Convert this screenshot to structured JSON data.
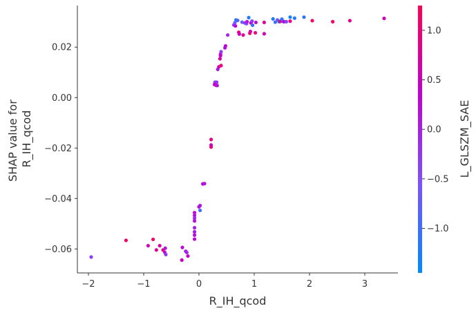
{
  "chart_data": {
    "type": "scatter",
    "title": "",
    "xlabel": "R_IH_qcod",
    "ylabel_lines": [
      "SHAP value for",
      "R_IH_qcod"
    ],
    "xlim": [
      -2.2,
      3.6
    ],
    "ylim": [
      -0.0695,
      0.0365
    ],
    "xticks": [
      -2,
      -1,
      0,
      1,
      2,
      3
    ],
    "yticks": [
      -0.06,
      -0.04,
      -0.02,
      0.0,
      0.02
    ],
    "xtick_labels": [
      "−2",
      "−1",
      "0",
      "1",
      "2",
      "3"
    ],
    "ytick_labels": [
      "−0.06",
      "−0.04",
      "−0.02",
      "0.00",
      "0.02"
    ],
    "grid": false,
    "colorbar": {
      "label": "L_GLSZM_SAE",
      "range": [
        -1.45,
        1.25
      ],
      "ticks": [
        -1.0,
        -0.5,
        0.0,
        0.5,
        1.0
      ],
      "tick_labels": [
        "−1.0",
        "−0.5",
        "0.0",
        "0.5",
        "1.0"
      ],
      "colors": [
        "#008afb",
        "#7c52ff",
        "#c100d2",
        "#ff0052"
      ]
    },
    "points": [
      {
        "x": -1.95,
        "y": -0.0632,
        "c": -0.3
      },
      {
        "x": -1.32,
        "y": -0.0566,
        "c": 1.1
      },
      {
        "x": -0.92,
        "y": -0.0587,
        "c": 0.6
      },
      {
        "x": -0.83,
        "y": -0.0562,
        "c": 1.1
      },
      {
        "x": -0.77,
        "y": -0.0604,
        "c": 0.8
      },
      {
        "x": -0.71,
        "y": -0.0587,
        "c": 0.6
      },
      {
        "x": -0.65,
        "y": -0.0604,
        "c": 0.9
      },
      {
        "x": -0.62,
        "y": -0.0613,
        "c": 0.2
      },
      {
        "x": -0.6,
        "y": -0.0622,
        "c": -0.2
      },
      {
        "x": -0.61,
        "y": -0.0597,
        "c": 0.1
      },
      {
        "x": -0.31,
        "y": -0.0644,
        "c": 0.4
      },
      {
        "x": -0.3,
        "y": -0.0594,
        "c": 0.3
      },
      {
        "x": -0.24,
        "y": -0.0609,
        "c": 0.0
      },
      {
        "x": -0.22,
        "y": -0.0614,
        "c": -0.1
      },
      {
        "x": -0.2,
        "y": -0.0628,
        "c": 0.4
      },
      {
        "x": -0.08,
        "y": -0.0456,
        "c": 0.3
      },
      {
        "x": -0.08,
        "y": -0.0467,
        "c": 0.2
      },
      {
        "x": -0.08,
        "y": -0.0478,
        "c": -0.1
      },
      {
        "x": -0.08,
        "y": -0.0489,
        "c": 0.2
      },
      {
        "x": -0.08,
        "y": -0.0516,
        "c": 0.0
      },
      {
        "x": -0.08,
        "y": -0.0532,
        "c": 0.1
      },
      {
        "x": -0.08,
        "y": -0.0545,
        "c": 0.2
      },
      {
        "x": -0.08,
        "y": -0.0561,
        "c": 0.3
      },
      {
        "x": 0.02,
        "y": -0.0428,
        "c": 0.1
      },
      {
        "x": 0.0,
        "y": -0.0433,
        "c": 0.2
      },
      {
        "x": 0.02,
        "y": -0.0447,
        "c": -0.9
      },
      {
        "x": 0.07,
        "y": -0.0342,
        "c": 0.3
      },
      {
        "x": 0.1,
        "y": -0.0341,
        "c": 0.1
      },
      {
        "x": 0.22,
        "y": -0.0166,
        "c": 0.9
      },
      {
        "x": 0.22,
        "y": -0.0188,
        "c": 0.3
      },
      {
        "x": 0.22,
        "y": -0.0196,
        "c": 1.0
      },
      {
        "x": 0.28,
        "y": 0.0052,
        "c": 0.3
      },
      {
        "x": 0.29,
        "y": 0.0061,
        "c": -0.4
      },
      {
        "x": 0.3,
        "y": 0.0055,
        "c": 0.8
      },
      {
        "x": 0.31,
        "y": 0.0049,
        "c": 0.5
      },
      {
        "x": 0.32,
        "y": 0.0061,
        "c": -0.2
      },
      {
        "x": 0.33,
        "y": 0.0048,
        "c": 0.1
      },
      {
        "x": 0.34,
        "y": 0.0112,
        "c": 0.0
      },
      {
        "x": 0.36,
        "y": 0.0122,
        "c": 0.5
      },
      {
        "x": 0.38,
        "y": 0.0154,
        "c": 0.7
      },
      {
        "x": 0.39,
        "y": 0.0166,
        "c": 0.2
      },
      {
        "x": 0.39,
        "y": 0.0172,
        "c": 0.4
      },
      {
        "x": 0.4,
        "y": 0.0182,
        "c": -0.3
      },
      {
        "x": 0.4,
        "y": 0.0127,
        "c": 1.0
      },
      {
        "x": 0.47,
        "y": 0.0197,
        "c": 0.1
      },
      {
        "x": 0.48,
        "y": 0.0205,
        "c": 0.3
      },
      {
        "x": 0.52,
        "y": 0.0248,
        "c": -0.1
      },
      {
        "x": 0.63,
        "y": 0.0288,
        "c": -0.4
      },
      {
        "x": 0.65,
        "y": 0.0297,
        "c": -0.6
      },
      {
        "x": 0.66,
        "y": 0.0284,
        "c": 0.3
      },
      {
        "x": 0.67,
        "y": 0.0308,
        "c": -1.1
      },
      {
        "x": 0.7,
        "y": 0.0306,
        "c": -0.9
      },
      {
        "x": 0.72,
        "y": 0.0259,
        "c": 1.0
      },
      {
        "x": 0.73,
        "y": 0.0252,
        "c": 0.5
      },
      {
        "x": 0.78,
        "y": 0.0299,
        "c": -0.7
      },
      {
        "x": 0.8,
        "y": 0.0248,
        "c": 0.8
      },
      {
        "x": 0.83,
        "y": 0.0296,
        "c": -0.2
      },
      {
        "x": 0.86,
        "y": 0.0293,
        "c": -0.5
      },
      {
        "x": 0.87,
        "y": 0.0301,
        "c": 0.1
      },
      {
        "x": 0.9,
        "y": 0.0317,
        "c": -1.2
      },
      {
        "x": 0.92,
        "y": 0.0255,
        "c": 1.1
      },
      {
        "x": 0.93,
        "y": 0.0262,
        "c": 0.6
      },
      {
        "x": 0.94,
        "y": 0.0296,
        "c": 0.4
      },
      {
        "x": 0.96,
        "y": 0.0303,
        "c": -0.3
      },
      {
        "x": 0.97,
        "y": 0.0287,
        "c": -1.0
      },
      {
        "x": 1.02,
        "y": 0.0257,
        "c": 1.0
      },
      {
        "x": 1.03,
        "y": 0.0298,
        "c": 0.2
      },
      {
        "x": 1.18,
        "y": 0.0298,
        "c": 0.7
      },
      {
        "x": 1.18,
        "y": 0.0253,
        "c": 0.5
      },
      {
        "x": 1.34,
        "y": 0.0312,
        "c": -1.2
      },
      {
        "x": 1.38,
        "y": 0.0299,
        "c": -1.0
      },
      {
        "x": 1.42,
        "y": 0.0308,
        "c": -0.6
      },
      {
        "x": 1.45,
        "y": 0.0301,
        "c": -1.3
      },
      {
        "x": 1.47,
        "y": 0.0302,
        "c": 1.0
      },
      {
        "x": 1.5,
        "y": 0.0311,
        "c": -1.1
      },
      {
        "x": 1.52,
        "y": 0.0302,
        "c": -0.8
      },
      {
        "x": 1.54,
        "y": 0.0301,
        "c": 0.3
      },
      {
        "x": 1.58,
        "y": 0.0301,
        "c": -0.4
      },
      {
        "x": 1.65,
        "y": 0.0303,
        "c": 0.9
      },
      {
        "x": 1.65,
        "y": 0.0319,
        "c": -1.3
      },
      {
        "x": 1.73,
        "y": 0.0315,
        "c": -1.2
      },
      {
        "x": 1.9,
        "y": 0.0319,
        "c": -1.1
      },
      {
        "x": 2.05,
        "y": 0.0305,
        "c": 1.1
      },
      {
        "x": 2.42,
        "y": 0.0301,
        "c": 1.1
      },
      {
        "x": 2.73,
        "y": 0.0305,
        "c": 0.8
      },
      {
        "x": 3.35,
        "y": 0.0314,
        "c": 0.5
      }
    ]
  }
}
